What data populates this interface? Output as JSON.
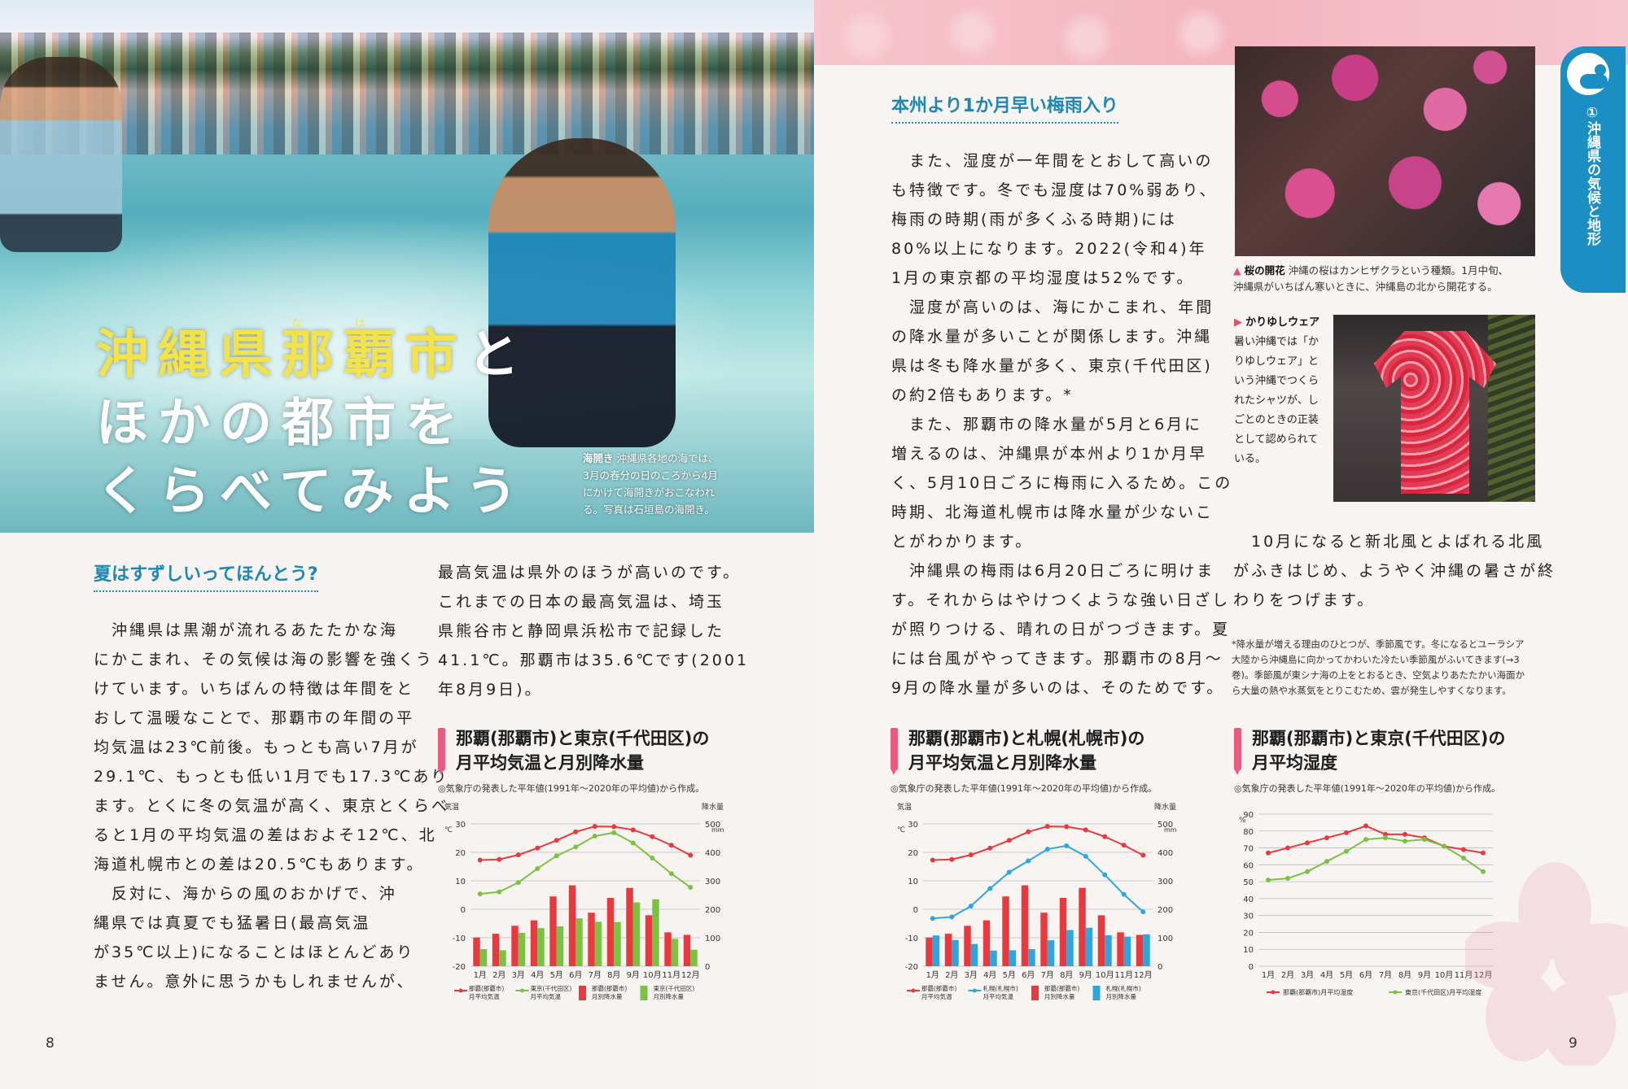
{
  "left_page": {
    "headline": {
      "line1_part1": "沖縄県",
      "line1_part2": "那覇市",
      "line1_part3": "と",
      "line1_ruby_na": "な",
      "line1_ruby_ha": "は",
      "line2": "ほかの都市を",
      "line3": "くらべてみよう"
    },
    "photo_caption": {
      "head": "海開き",
      "lines": [
        "沖縄県各地の海では、",
        "3月の春分の日のころから4月",
        "にかけて海開きがおこなわれ",
        "る。写真は石垣島の海開き。"
      ]
    },
    "section_title": "夏はすずしいってほんとう?",
    "col1": [
      "　沖縄県は黒潮が流れるあたたかな海",
      "にかこまれ、その気候は海の影響を強くう",
      "けています。いちばんの特徴は年間をと",
      "おして温暖なことで、那覇市の年間の平",
      "均気温は23℃前後。もっとも高い7月が",
      "29.1℃、もっとも低い1月でも17.3℃あり",
      "ます。とくに冬の気温が高く、東京とくらべ",
      "ると1月の平均気温の差はおよそ12℃、北",
      "海道札幌市との差は20.5℃もあります。",
      "　反対に、海からの風のおかげで、沖",
      "縄県では真夏でも猛暑日(最高気温",
      "が35℃以上)になることはほとんどあり",
      "ません。意外に思うかもしれませんが、"
    ],
    "col2": [
      "最高気温は県外のほうが高いのです。",
      "これまでの日本の最高気温は、埼玉",
      "県熊谷市と静岡県浜松市で記録した",
      "41.1℃。那覇市は35.6℃です(2001",
      "年8月9日)。"
    ],
    "page_number": "8"
  },
  "right_page": {
    "section_title": "本州より1か月早い梅雨入り",
    "col1": [
      "　また、湿度が一年間をとおして高いの",
      "も特徴です。冬でも湿度は70%弱あり、",
      "梅雨の時期(雨が多くふる時期)には",
      "80%以上になります。2022(令和4)年",
      "1月の東京都の平均湿度は52%です。",
      "　湿度が高いのは、海にかこまれ、年間",
      "の降水量が多いことが関係します。沖縄",
      "県は冬も降水量が多く、東京(千代田区)",
      "の約2倍もあります。*",
      "　また、那覇市の降水量が5月と6月に",
      "増えるのは、沖縄県が本州より1か月早",
      "く、5月10日ごろに梅雨に入るため。この",
      "時期、北海道札幌市は降水量が少ないこ",
      "とがわかります。",
      "　沖縄県の梅雨は6月20日ごろに明けま",
      "す。それからはやけつくような強い日ざし",
      "が照りつける、晴れの日がつづきます。夏",
      "には台風がやってきます。那覇市の8月〜",
      "9月の降水量が多いのは、そのためです。"
    ],
    "col2": [
      "　10月になると新北風とよばれる北風",
      "がふきはじめ、ようやく沖縄の暑さが終",
      "わりをつげます。"
    ],
    "sakura_caption": {
      "head": "桜の開花",
      "line1": "沖縄の桜はカンヒザクラという種類。1月中旬、",
      "line2": "沖縄県がいちばん寒いときに、沖縄島の北から開花する。"
    },
    "kariyushi": {
      "head": "かりゆしウェア",
      "lines": [
        "暑い沖縄では「か",
        "りゆしウェア」と",
        "いう沖縄でつくら",
        "れたシャツが、し",
        "ごとのときの正装",
        "として認められて",
        "いる。"
      ]
    },
    "footnote": {
      "lines": [
        "*降水量が増える理由のひとつが、季節風です。冬になるとユーラシア",
        "大陸から沖縄島に向かってかわいた冷たい季節風がふいてきます(→3",
        "巻)。季節風が東シナ海の上をとおるとき、空気よりあたたかい海面か",
        "ら大量の熱や水蒸気をとりこむため、雲が発生しやすくなります。"
      ]
    },
    "side_tab": "①沖縄県の気候と地形",
    "page_number": "9"
  },
  "chart_data": [
    {
      "type": "bar+line",
      "title": "那覇(那覇市)と東京(千代田区)の月平均気温と月別降水量",
      "title_line1": "那覇(那覇市)と東京(千代田区)の",
      "title_line2": "月平均気温と月別降水量",
      "source": "◎気象庁の発表した平年値(1991年〜2020年の平均値)から作成。",
      "left_axis_label": "気温",
      "left_axis_unit": "℃",
      "right_axis_label": "降水量",
      "right_axis_unit": "mm",
      "ylim_left": [
        -20,
        30
      ],
      "ylim_right": [
        0,
        500
      ],
      "categories": [
        "1月",
        "2月",
        "3月",
        "4月",
        "5月",
        "6月",
        "7月",
        "8月",
        "9月",
        "10月",
        "11月",
        "12月"
      ],
      "line_series": [
        {
          "name": "那覇(那覇市)月平均気温",
          "color": "#e8393f",
          "values": [
            17.3,
            17.5,
            19.1,
            21.5,
            24.2,
            27.2,
            29.1,
            29.0,
            27.9,
            25.5,
            22.5,
            19.0
          ]
        },
        {
          "name": "東京(千代田区)月平均気温",
          "color": "#7cc242",
          "values": [
            5.4,
            6.1,
            9.4,
            14.3,
            18.8,
            21.9,
            25.7,
            26.9,
            23.3,
            18.0,
            12.5,
            7.7
          ]
        }
      ],
      "bar_series": [
        {
          "name": "那覇(那覇市)月別降水量",
          "color": "#e8393f",
          "values": [
            101,
            114,
            142,
            161,
            245,
            284,
            188,
            240,
            275,
            179,
            119,
            110
          ]
        },
        {
          "name": "東京(千代田区)月別降水量",
          "color": "#7cc242",
          "values": [
            60,
            56,
            117,
            134,
            140,
            168,
            156,
            155,
            224,
            235,
            96,
            58
          ]
        }
      ],
      "legend": [
        "那覇(那覇市)月平均気温",
        "東京(千代田区)月平均気温",
        "那覇(那覇市)月別降水量",
        "東京(千代田区)月別降水量"
      ]
    },
    {
      "type": "bar+line",
      "title": "那覇(那覇市)と札幌(札幌市)の月平均気温と月別降水量",
      "title_line1": "那覇(那覇市)と札幌(札幌市)の",
      "title_line2": "月平均気温と月別降水量",
      "source": "◎気象庁の発表した平年値(1991年〜2020年の平均値)から作成。",
      "left_axis_label": "気温",
      "left_axis_unit": "℃",
      "right_axis_label": "降水量",
      "right_axis_unit": "mm",
      "ylim_left": [
        -20,
        30
      ],
      "ylim_right": [
        0,
        500
      ],
      "categories": [
        "1月",
        "2月",
        "3月",
        "4月",
        "5月",
        "6月",
        "7月",
        "8月",
        "9月",
        "10月",
        "11月",
        "12月"
      ],
      "line_series": [
        {
          "name": "那覇(那覇市)月平均気温",
          "color": "#e8393f",
          "values": [
            17.3,
            17.5,
            19.1,
            21.5,
            24.2,
            27.2,
            29.1,
            29.0,
            27.9,
            25.5,
            22.5,
            19.0
          ]
        },
        {
          "name": "札幌(札幌市)月平均気温",
          "color": "#2ea6dd",
          "values": [
            -3.2,
            -2.7,
            1.1,
            7.3,
            13.0,
            17.0,
            21.1,
            22.3,
            18.6,
            12.1,
            5.2,
            -0.9
          ]
        }
      ],
      "bar_series": [
        {
          "name": "那覇(那覇市)月別降水量",
          "color": "#e8393f",
          "values": [
            101,
            114,
            142,
            161,
            245,
            284,
            188,
            240,
            275,
            179,
            119,
            110
          ]
        },
        {
          "name": "札幌(札幌市)月別降水量",
          "color": "#2ea6dd",
          "values": [
            108,
            92,
            78,
            55,
            56,
            60,
            91,
            127,
            135,
            109,
            104,
            112
          ]
        }
      ],
      "legend": [
        "那覇(那覇市)月平均気温",
        "札幌(札幌市)月平均気温",
        "那覇(那覇市)月別降水量",
        "札幌(札幌市)月別降水量"
      ]
    },
    {
      "type": "line",
      "title": "那覇(那覇市)と東京(千代田区)の月平均湿度",
      "title_line1": "那覇(那覇市)と東京(千代田区)の",
      "title_line2": "月平均湿度",
      "source": "◎気象庁の発表した平年値(1991年〜2020年の平均値)から作成。",
      "left_axis_unit": "%",
      "ylim": [
        0,
        90
      ],
      "categories": [
        "1月",
        "2月",
        "3月",
        "4月",
        "5月",
        "6月",
        "7月",
        "8月",
        "9月",
        "10月",
        "11月",
        "12月"
      ],
      "line_series": [
        {
          "name": "那覇(那覇市)月平均湿度",
          "color": "#e8393f",
          "values": [
            67,
            70,
            73,
            76,
            79,
            83,
            78,
            78,
            76,
            71,
            69,
            67
          ]
        },
        {
          "name": "東京(千代田区)月平均湿度",
          "color": "#7cc242",
          "values": [
            51,
            52,
            56,
            62,
            68,
            75,
            76,
            74,
            75,
            71,
            64,
            56
          ]
        }
      ],
      "legend": [
        "那覇(那覇市)月平均湿度",
        "東京(千代田区)月平均湿度"
      ]
    }
  ]
}
